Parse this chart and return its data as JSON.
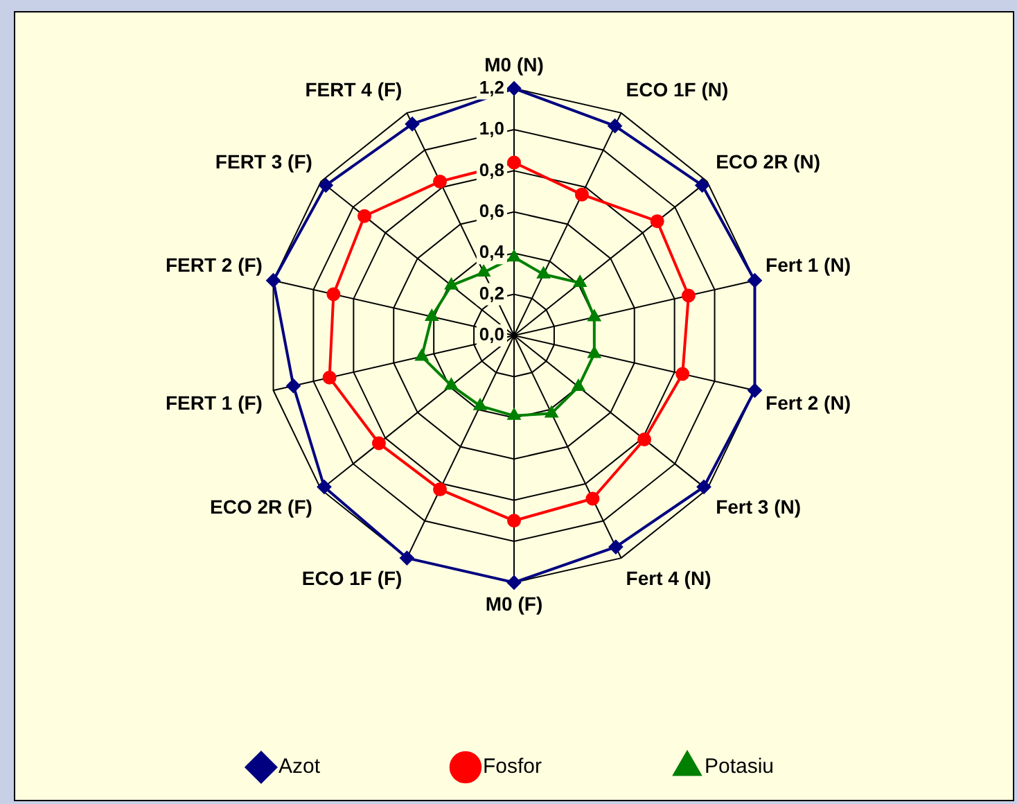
{
  "chart_data": {
    "type": "radar",
    "categories": [
      "M0 (N)",
      "ECO 1F (N)",
      "ECO 2R (N)",
      "Fert 1 (N)",
      "Fert 2 (N)",
      "Fert 3 (N)",
      "Fert 4 (N)",
      "M0 (F)",
      "ECO 1F (F)",
      "ECO 2R (F)",
      "FERT 1 (F)",
      "FERT 2 (F)",
      "FERT 3 (F)",
      "FERT 4 (F)"
    ],
    "series": [
      {
        "name": "Azot",
        "color": "#000080",
        "marker": "diamond",
        "values": [
          1.2,
          1.13,
          1.17,
          1.2,
          1.2,
          1.18,
          1.14,
          1.2,
          1.2,
          1.18,
          1.1,
          1.2,
          1.17,
          1.14
        ]
      },
      {
        "name": "Fosfor",
        "color": "#ff0000",
        "marker": "circle",
        "values": [
          0.84,
          0.76,
          0.89,
          0.87,
          0.84,
          0.81,
          0.88,
          0.9,
          0.83,
          0.84,
          0.92,
          0.9,
          0.93,
          0.83
        ]
      },
      {
        "name": "Potasiu",
        "color": "#008000",
        "marker": "triangle",
        "values": [
          0.38,
          0.33,
          0.41,
          0.4,
          0.4,
          0.4,
          0.42,
          0.39,
          0.38,
          0.39,
          0.46,
          0.41,
          0.39,
          0.34
        ]
      }
    ],
    "ylim": [
      0,
      1.2
    ],
    "yticks": [
      {
        "value": 0,
        "label": "0,0"
      },
      {
        "value": 0.2,
        "label": "0,2"
      },
      {
        "value": 0.4,
        "label": "0,4"
      },
      {
        "value": 0.6,
        "label": "0,6"
      },
      {
        "value": 0.8,
        "label": "0,8"
      },
      {
        "value": 1,
        "label": "1,0"
      },
      {
        "value": 1.2,
        "label": "1,2"
      }
    ],
    "grid": true,
    "legend": "bottom"
  }
}
